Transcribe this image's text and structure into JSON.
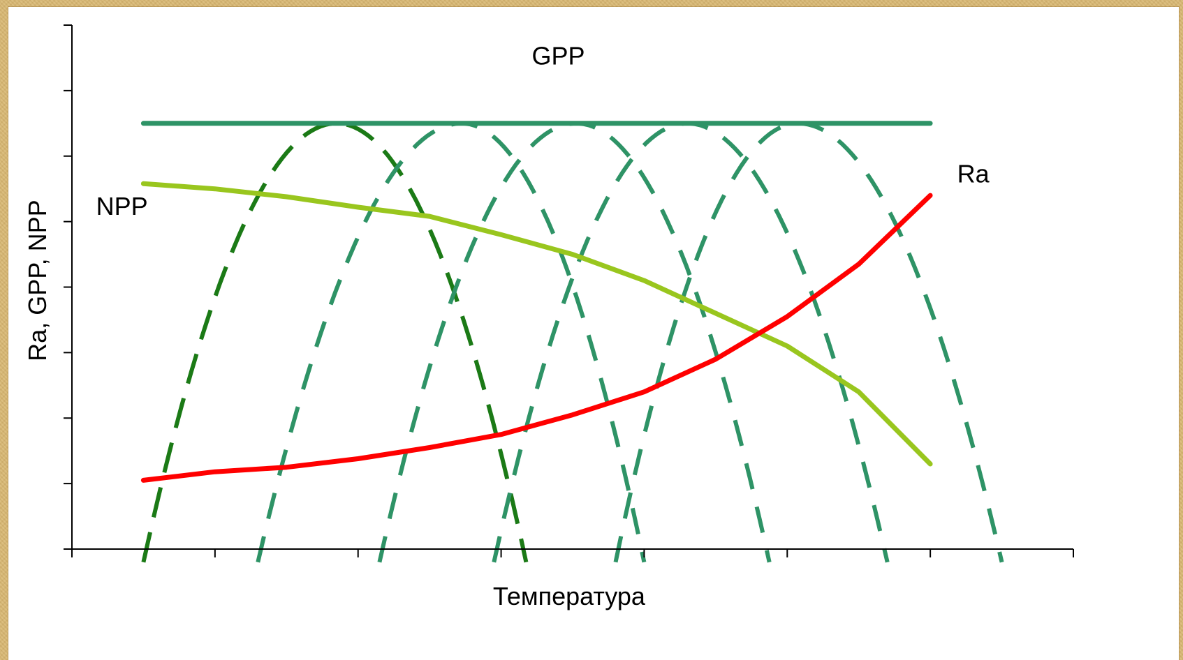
{
  "chart_data": {
    "type": "line",
    "title": "",
    "xlabel": "Температура",
    "ylabel": "Ra, GPP, NPP",
    "x_ticks": 14,
    "y_ticks": 8,
    "xlim": [
      0,
      14
    ],
    "ylim": [
      0,
      8
    ],
    "grid": false,
    "series": [
      {
        "name": "GPP",
        "color": "#2e9366",
        "x": [
          1,
          12
        ],
        "values": [
          6.5,
          6.5
        ]
      },
      {
        "name": "NPP",
        "color": "#99c61e",
        "x": [
          1,
          2,
          3,
          4,
          5,
          6,
          7,
          8,
          9,
          10,
          11,
          12
        ],
        "values": [
          5.58,
          5.5,
          5.38,
          5.22,
          5.08,
          4.8,
          4.5,
          4.1,
          3.6,
          3.1,
          2.4,
          1.3
        ]
      },
      {
        "name": "Ra",
        "color": "#ff0000",
        "x": [
          1,
          2,
          3,
          4,
          5,
          6,
          7,
          8,
          9,
          10,
          11,
          12
        ],
        "values": [
          1.05,
          1.18,
          1.25,
          1.38,
          1.55,
          1.75,
          2.05,
          2.4,
          2.9,
          3.55,
          4.35,
          5.4
        ]
      }
    ],
    "response_curves": [
      {
        "color": "#1b7a16",
        "peak_x": 3.7,
        "peak_y": 6.5,
        "x_start": 1.0,
        "x_end": 6.35,
        "dash": "long"
      },
      {
        "color": "#2e9366",
        "peak_x": 5.45,
        "peak_y": 6.5,
        "x_start": 2.6,
        "x_end": 8.0,
        "dash": "short"
      },
      {
        "color": "#2e9366",
        "peak_x": 7.05,
        "peak_y": 6.5,
        "x_start": 4.3,
        "x_end": 9.75,
        "dash": "short"
      },
      {
        "color": "#2e9366",
        "peak_x": 8.6,
        "peak_y": 6.5,
        "x_start": 5.9,
        "x_end": 11.4,
        "dash": "short"
      },
      {
        "color": "#2e9366",
        "peak_x": 10.15,
        "peak_y": 6.5,
        "x_start": 7.6,
        "x_end": 13.0,
        "dash": "short"
      }
    ],
    "annotations": [
      {
        "text": "GPP",
        "x": 6.8,
        "y": 7.4
      },
      {
        "text": "NPP",
        "x": 0.7,
        "y": 5.1
      },
      {
        "text": "Ra",
        "x": 12.6,
        "y": 5.6
      }
    ]
  }
}
